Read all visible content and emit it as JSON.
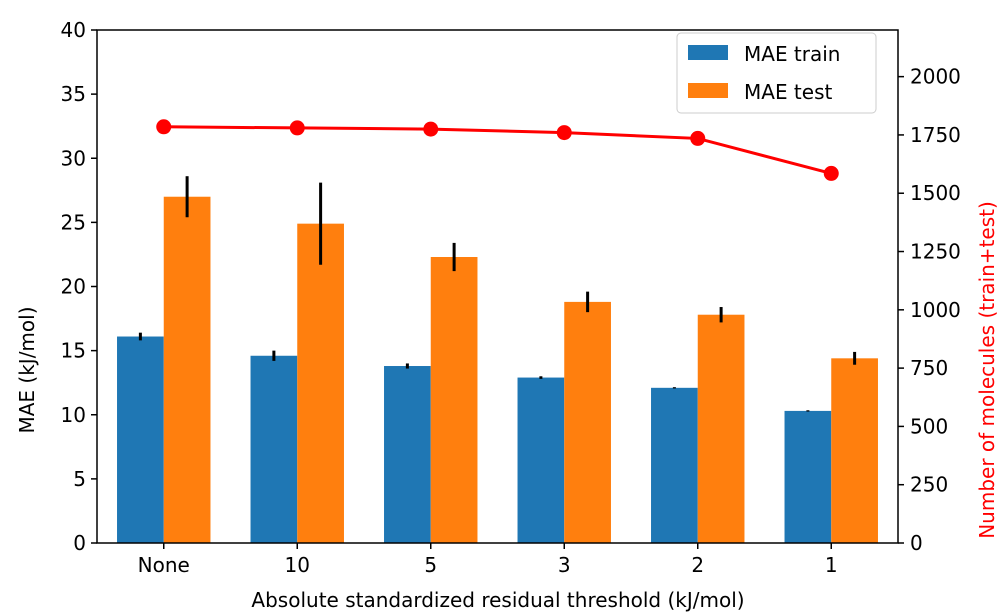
{
  "chart_data": {
    "type": "bar",
    "xlabel": "Absolute standardized residual threshold (kJ/mol)",
    "ylabel": "MAE (kJ/mol)",
    "y2label": "Number of molecules (train+test)",
    "categories": [
      "None",
      "10",
      "5",
      "3",
      "2",
      "1"
    ],
    "ylim": [
      0,
      40
    ],
    "y2lim": [
      0,
      2200
    ],
    "yticks": [
      "0",
      "5",
      "10",
      "15",
      "20",
      "25",
      "30",
      "35",
      "40"
    ],
    "y2ticks": [
      "0",
      "250",
      "500",
      "750",
      "1000",
      "1250",
      "1500",
      "1750",
      "2000"
    ],
    "grid": false,
    "legend_position": "top-right",
    "series": [
      {
        "name": "MAE train",
        "kind": "bar",
        "color": "#1f77b4",
        "values": [
          16.1,
          14.6,
          13.8,
          12.9,
          12.1,
          10.3
        ],
        "errors": [
          0.3,
          0.4,
          0.2,
          0.1,
          0.05,
          0.05
        ]
      },
      {
        "name": "MAE test",
        "kind": "bar",
        "color": "#ff7f0e",
        "values": [
          27.0,
          24.9,
          22.3,
          18.8,
          17.8,
          14.4
        ],
        "errors": [
          1.6,
          3.2,
          1.1,
          0.8,
          0.6,
          0.5
        ]
      },
      {
        "kind": "line",
        "axis": "right",
        "color": "#ff0000",
        "values": [
          1785,
          1780,
          1775,
          1760,
          1735,
          1585
        ]
      }
    ],
    "axis2_color": "#ff0000"
  }
}
